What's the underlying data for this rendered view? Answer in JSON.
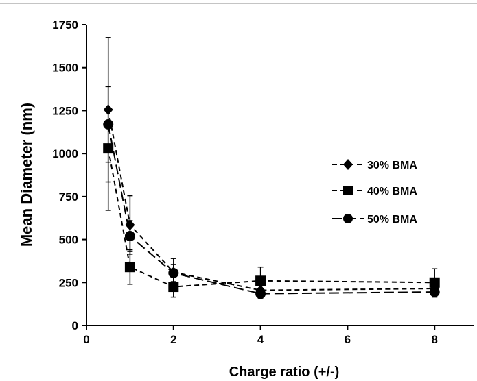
{
  "chart_data": {
    "type": "line",
    "title": "",
    "xlabel": "Charge ratio (+/-)",
    "ylabel": "Mean Diameter (nm)",
    "xlim": [
      0,
      9
    ],
    "ylim": [
      0,
      1750
    ],
    "xticks": [
      0,
      2,
      4,
      6,
      8
    ],
    "yticks": [
      0,
      250,
      500,
      750,
      1000,
      1250,
      1500,
      1750
    ],
    "grid": false,
    "legend_position": "right",
    "series": [
      {
        "name": "30% BMA",
        "marker": "diamond",
        "line_style": "dashed",
        "color": "#000000",
        "x": [
          0.5,
          1,
          2,
          4,
          8
        ],
        "y": [
          1255,
          585,
          310,
          205,
          215
        ],
        "error": [
          420,
          170,
          80,
          40,
          40
        ]
      },
      {
        "name": "40% BMA",
        "marker": "square",
        "line_style": "dashed",
        "color": "#000000",
        "x": [
          0.5,
          1,
          2,
          4,
          8
        ],
        "y": [
          1030,
          340,
          225,
          260,
          250
        ],
        "error": [
          360,
          100,
          60,
          80,
          80
        ]
      },
      {
        "name": "50% BMA",
        "marker": "circle",
        "line_style": "long-dash",
        "color": "#000000",
        "x": [
          0.5,
          1,
          2,
          4,
          8
        ],
        "y": [
          1170,
          520,
          305,
          185,
          195
        ],
        "error": [
          220,
          90,
          50,
          30,
          30
        ]
      }
    ]
  }
}
